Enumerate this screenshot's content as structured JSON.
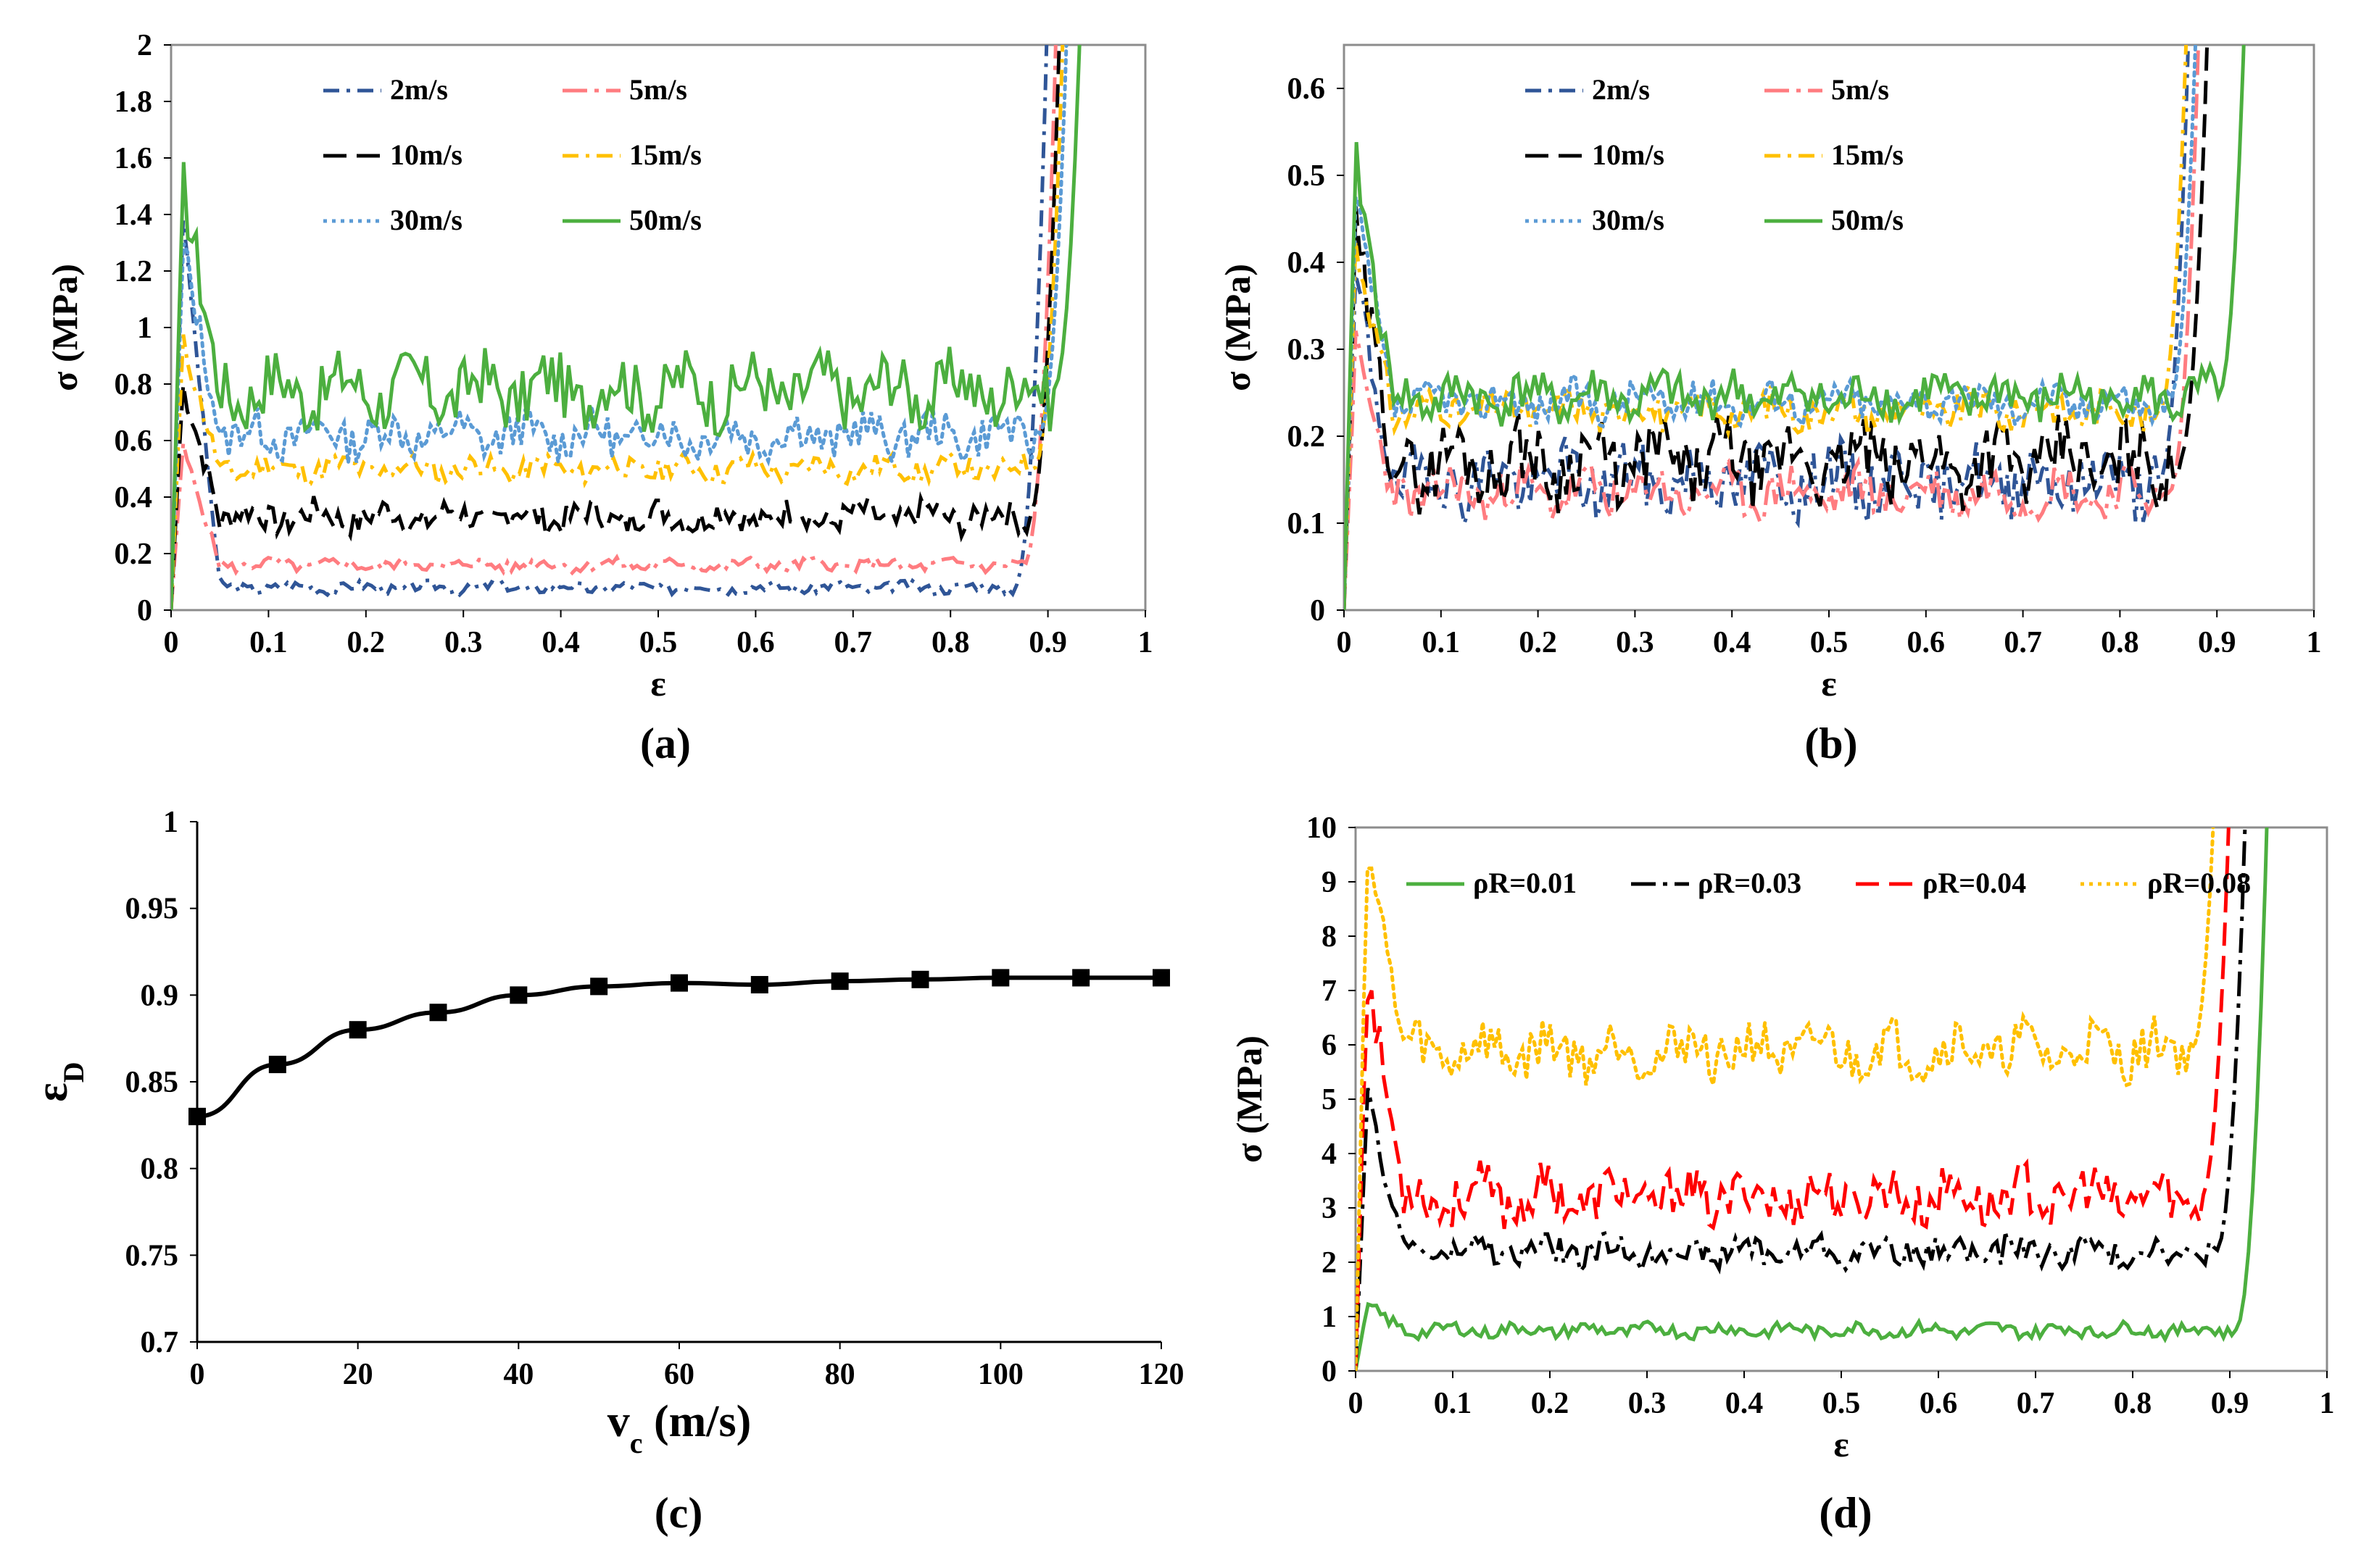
{
  "chart_data": [
    {
      "id": "a",
      "caption": "(a)",
      "type": "line",
      "xlabel": "ε",
      "ylabel": "σ (MPa)",
      "xlim": [
        0,
        1
      ],
      "ylim": [
        0,
        2
      ],
      "xticks": [
        "0",
        "0.1",
        "0.2",
        "0.3",
        "0.4",
        "0.5",
        "0.6",
        "0.7",
        "0.8",
        "0.9",
        "1"
      ],
      "yticks": [
        "0",
        "0.2",
        "0.4",
        "0.6",
        "0.8",
        "1",
        "1.2",
        "1.4",
        "1.6",
        "1.8",
        "2"
      ],
      "legend_position": "top-center",
      "series": [
        {
          "name": "2m/s",
          "color": "#2f5597",
          "dash": "dashdot",
          "plateau": 0.08,
          "amp": 0.018,
          "peak": 1.4,
          "densify": 0.865,
          "seed": 3
        },
        {
          "name": "5m/s",
          "color": "#ff7c80",
          "dash": "longdashdot",
          "plateau": 0.16,
          "amp": 0.02,
          "peak": 0.58,
          "densify": 0.875,
          "seed": 5
        },
        {
          "name": "10m/s",
          "color": "#000000",
          "dash": "longdash",
          "plateau": 0.33,
          "amp": 0.05,
          "peak": 0.8,
          "densify": 0.88,
          "seed": 7
        },
        {
          "name": "15m/s",
          "color": "#ffc000",
          "dash": "dashdot",
          "plateau": 0.5,
          "amp": 0.04,
          "peak": 0.95,
          "densify": 0.885,
          "seed": 11
        },
        {
          "name": "30m/s",
          "color": "#5b9bd5",
          "dash": "dot",
          "plateau": 0.62,
          "amp": 0.07,
          "peak": 1.3,
          "densify": 0.89,
          "seed": 13
        },
        {
          "name": "50m/s",
          "color": "#4caf3f",
          "dash": "solid",
          "plateau": 0.78,
          "amp": 0.11,
          "peak": 1.51,
          "densify": 0.905,
          "seed": 17
        }
      ]
    },
    {
      "id": "b",
      "caption": "(b)",
      "type": "line",
      "xlabel": "ε",
      "ylabel": "σ (MPa)",
      "xlim": [
        0,
        1
      ],
      "ylim": [
        0,
        0.65
      ],
      "xticks": [
        "0",
        "0.1",
        "0.2",
        "0.3",
        "0.4",
        "0.5",
        "0.6",
        "0.7",
        "0.8",
        "0.9",
        "1"
      ],
      "yticks": [
        "0",
        "0.1",
        "0.2",
        "0.3",
        "0.4",
        "0.5",
        "0.6"
      ],
      "legend_position": "top-center",
      "series": [
        {
          "name": "2m/s",
          "color": "#2f5597",
          "dash": "dashdot",
          "plateau": 0.15,
          "amp": 0.035,
          "peak": 0.38,
          "densify": 0.84,
          "seed": 19
        },
        {
          "name": "5m/s",
          "color": "#ff7c80",
          "dash": "longdashdot",
          "plateau": 0.135,
          "amp": 0.025,
          "peak": 0.3,
          "densify": 0.85,
          "seed": 23
        },
        {
          "name": "10m/s",
          "color": "#000000",
          "dash": "longdash",
          "plateau": 0.17,
          "amp": 0.04,
          "peak": 0.43,
          "densify": 0.86,
          "seed": 29
        },
        {
          "name": "15m/s",
          "color": "#ffc000",
          "dash": "dashdot",
          "plateau": 0.23,
          "amp": 0.02,
          "peak": 0.42,
          "densify": 0.84,
          "seed": 31
        },
        {
          "name": "30m/s",
          "color": "#5b9bd5",
          "dash": "dot",
          "plateau": 0.24,
          "amp": 0.02,
          "peak": 0.47,
          "densify": 0.85,
          "seed": 37
        },
        {
          "name": "50m/s",
          "color": "#4caf3f",
          "dash": "solid",
          "plateau": 0.245,
          "amp": 0.025,
          "peak": 0.52,
          "densify": 0.9,
          "seed": 41
        }
      ]
    },
    {
      "id": "c",
      "caption": "(c)",
      "type": "line",
      "xlabel": "v",
      "xlabel_sub": "c",
      "xlabel_tail": " (m/s)",
      "ylabel": "ε",
      "ylabel_sub": "D",
      "xlim": [
        0,
        120
      ],
      "ylim": [
        0.7,
        1
      ],
      "xticks": [
        "0",
        "20",
        "40",
        "60",
        "80",
        "100",
        "120"
      ],
      "yticks": [
        "0.7",
        "0.75",
        "0.8",
        "0.85",
        "0.9",
        "0.95",
        "1"
      ],
      "marker": "square",
      "color": "#000000",
      "x": [
        0,
        10,
        20,
        30,
        40,
        50,
        60,
        70,
        80,
        90,
        100,
        110,
        120
      ],
      "y": [
        0.83,
        0.86,
        0.88,
        0.89,
        0.9,
        0.905,
        0.907,
        0.906,
        0.908,
        0.909,
        0.91,
        0.91,
        0.91
      ]
    },
    {
      "id": "d",
      "caption": "(d)",
      "type": "line",
      "xlabel": "ε",
      "ylabel": "σ (MPa)",
      "xlim": [
        0,
        1
      ],
      "ylim": [
        0,
        10
      ],
      "xticks": [
        "0",
        "0.1",
        "0.2",
        "0.3",
        "0.4",
        "0.5",
        "0.6",
        "0.7",
        "0.8",
        "0.9",
        "1"
      ],
      "yticks": [
        "0",
        "1",
        "2",
        "3",
        "4",
        "5",
        "6",
        "7",
        "8",
        "9",
        "10"
      ],
      "legend_position": "top",
      "series": [
        {
          "name": "ρR=0.01",
          "color": "#4caf3f",
          "dash": "solid",
          "plateau": 0.75,
          "amp": 0.12,
          "peak": 1.2,
          "densify": 0.905,
          "seed": 43
        },
        {
          "name": "ρR=0.03",
          "color": "#000000",
          "dash": "longdashdot",
          "plateau": 2.2,
          "amp": 0.25,
          "peak": 5.0,
          "densify": 0.885,
          "seed": 47
        },
        {
          "name": "ρR=0.04",
          "color": "#ff0000",
          "dash": "longdash",
          "plateau": 3.2,
          "amp": 0.45,
          "peak": 7.3,
          "densify": 0.87,
          "seed": 53
        },
        {
          "name": "ρR=0.08",
          "color": "#ffc000",
          "dash": "dot",
          "plateau": 5.9,
          "amp": 0.45,
          "peak": 9.7,
          "densify": 0.86,
          "seed": 59
        }
      ]
    }
  ]
}
